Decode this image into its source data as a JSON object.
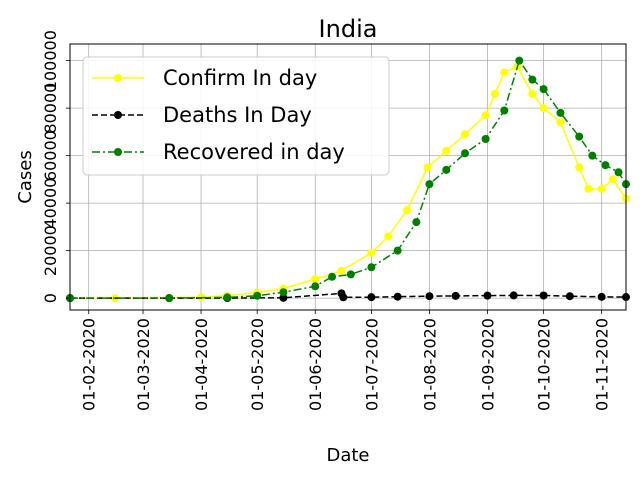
{
  "chart_data": {
    "type": "line",
    "title": "India",
    "xlabel": "Date",
    "ylabel": "Cases",
    "x_ticks": [
      "01-02-2020",
      "01-03-2020",
      "01-04-2020",
      "01-05-2020",
      "01-06-2020",
      "01-07-2020",
      "01-08-2020",
      "01-09-2020",
      "01-10-2020",
      "01-11-2020"
    ],
    "y_ticks": [
      "0",
      "20000",
      "40000",
      "60000",
      "80000",
      "100000"
    ],
    "x_range": [
      "2020-01-22",
      "2020-11-14"
    ],
    "ylim": [
      -5000,
      107000
    ],
    "grid": true,
    "legend_position": "upper left",
    "series": [
      {
        "name": "Confirm In day",
        "color": "#ffff00",
        "linestyle": "solid",
        "marker": "circle",
        "points": [
          [
            "2020-01-22",
            0
          ],
          [
            "2020-02-15",
            0
          ],
          [
            "2020-03-15",
            100
          ],
          [
            "2020-04-01",
            400
          ],
          [
            "2020-04-15",
            1000
          ],
          [
            "2020-05-01",
            2300
          ],
          [
            "2020-05-15",
            4000
          ],
          [
            "2020-06-01",
            8000
          ],
          [
            "2020-06-15",
            11500
          ],
          [
            "2020-07-01",
            19000
          ],
          [
            "2020-07-10",
            26000
          ],
          [
            "2020-07-20",
            37000
          ],
          [
            "2020-07-31",
            55000
          ],
          [
            "2020-08-10",
            62000
          ],
          [
            "2020-08-20",
            69000
          ],
          [
            "2020-08-31",
            77000
          ],
          [
            "2020-09-05",
            86000
          ],
          [
            "2020-09-10",
            95000
          ],
          [
            "2020-09-17",
            97500
          ],
          [
            "2020-09-25",
            86000
          ],
          [
            "2020-10-01",
            80000
          ],
          [
            "2020-10-10",
            74000
          ],
          [
            "2020-10-20",
            55000
          ],
          [
            "2020-10-25",
            46000
          ],
          [
            "2020-11-01",
            46000
          ],
          [
            "2020-11-07",
            50000
          ],
          [
            "2020-11-14",
            42000
          ]
        ]
      },
      {
        "name": "Deaths In Day",
        "color": "#000000",
        "linestyle": "dashed",
        "marker": "circle",
        "points": [
          [
            "2020-01-22",
            0
          ],
          [
            "2020-03-15",
            0
          ],
          [
            "2020-04-15",
            30
          ],
          [
            "2020-05-15",
            120
          ],
          [
            "2020-06-15",
            2000
          ],
          [
            "2020-06-16",
            350
          ],
          [
            "2020-07-01",
            400
          ],
          [
            "2020-07-15",
            600
          ],
          [
            "2020-08-01",
            800
          ],
          [
            "2020-08-15",
            950
          ],
          [
            "2020-09-01",
            1050
          ],
          [
            "2020-09-15",
            1150
          ],
          [
            "2020-10-01",
            1100
          ],
          [
            "2020-10-15",
            800
          ],
          [
            "2020-11-01",
            550
          ],
          [
            "2020-11-14",
            450
          ]
        ]
      },
      {
        "name": "Recovered in day",
        "color": "#008000",
        "linestyle": "dashdot",
        "marker": "circle",
        "points": [
          [
            "2020-01-22",
            0
          ],
          [
            "2020-03-15",
            0
          ],
          [
            "2020-04-15",
            300
          ],
          [
            "2020-05-01",
            1000
          ],
          [
            "2020-05-15",
            2500
          ],
          [
            "2020-06-01",
            5000
          ],
          [
            "2020-06-10",
            9000
          ],
          [
            "2020-06-20",
            10000
          ],
          [
            "2020-07-01",
            13000
          ],
          [
            "2020-07-15",
            20000
          ],
          [
            "2020-07-25",
            32000
          ],
          [
            "2020-08-01",
            48000
          ],
          [
            "2020-08-10",
            54000
          ],
          [
            "2020-08-20",
            61000
          ],
          [
            "2020-08-31",
            67000
          ],
          [
            "2020-09-10",
            79000
          ],
          [
            "2020-09-18",
            100000
          ],
          [
            "2020-09-25",
            92000
          ],
          [
            "2020-10-01",
            88000
          ],
          [
            "2020-10-10",
            78000
          ],
          [
            "2020-10-20",
            68000
          ],
          [
            "2020-10-27",
            60000
          ],
          [
            "2020-11-03",
            56000
          ],
          [
            "2020-11-10",
            53000
          ],
          [
            "2020-11-14",
            48000
          ]
        ]
      }
    ]
  }
}
